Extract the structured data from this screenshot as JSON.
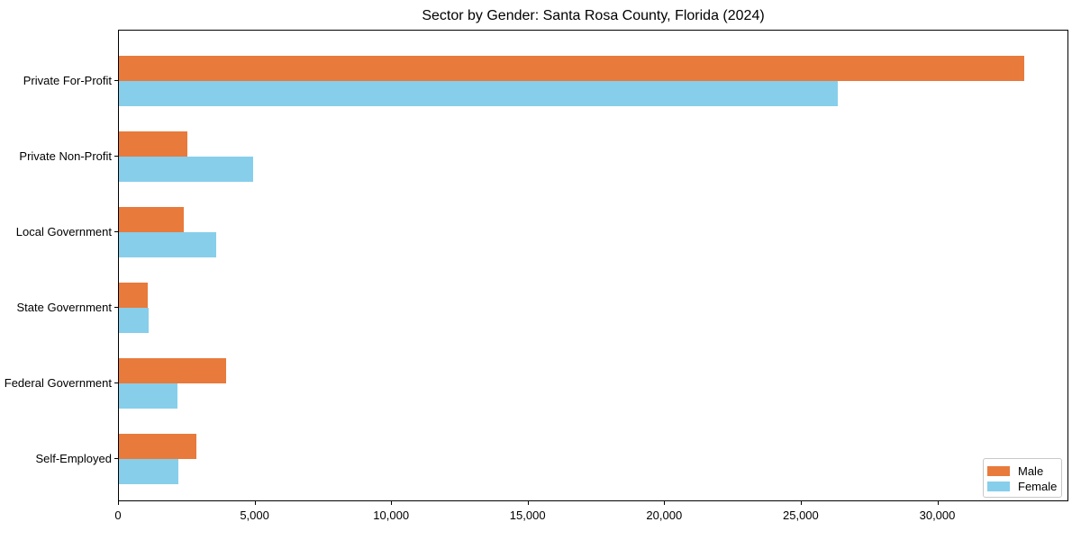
{
  "chart_data": {
    "type": "bar",
    "orientation": "horizontal",
    "title": "Sector by Gender: Santa Rosa County, Florida (2024)",
    "categories": [
      "Private For-Profit",
      "Private Non-Profit",
      "Local Government",
      "State Government",
      "Federal Government",
      "Self-Employed"
    ],
    "series": [
      {
        "name": "Male",
        "color": "#e87a3c",
        "values": [
          33150,
          2500,
          2380,
          1060,
          3910,
          2840
        ]
      },
      {
        "name": "Female",
        "color": "#87ceeb",
        "values": [
          26320,
          4900,
          3570,
          1080,
          2150,
          2180
        ]
      }
    ],
    "xlabel": "",
    "ylabel": "",
    "xlim": [
      0,
      34800
    ],
    "xticks": [
      0,
      5000,
      10000,
      15000,
      20000,
      25000,
      30000
    ],
    "xtick_labels": [
      "0",
      "5,000",
      "10,000",
      "15,000",
      "20,000",
      "25,000",
      "30,000"
    ],
    "grid": false,
    "legend": {
      "position": "lower right",
      "entries": [
        "Male",
        "Female"
      ]
    }
  }
}
